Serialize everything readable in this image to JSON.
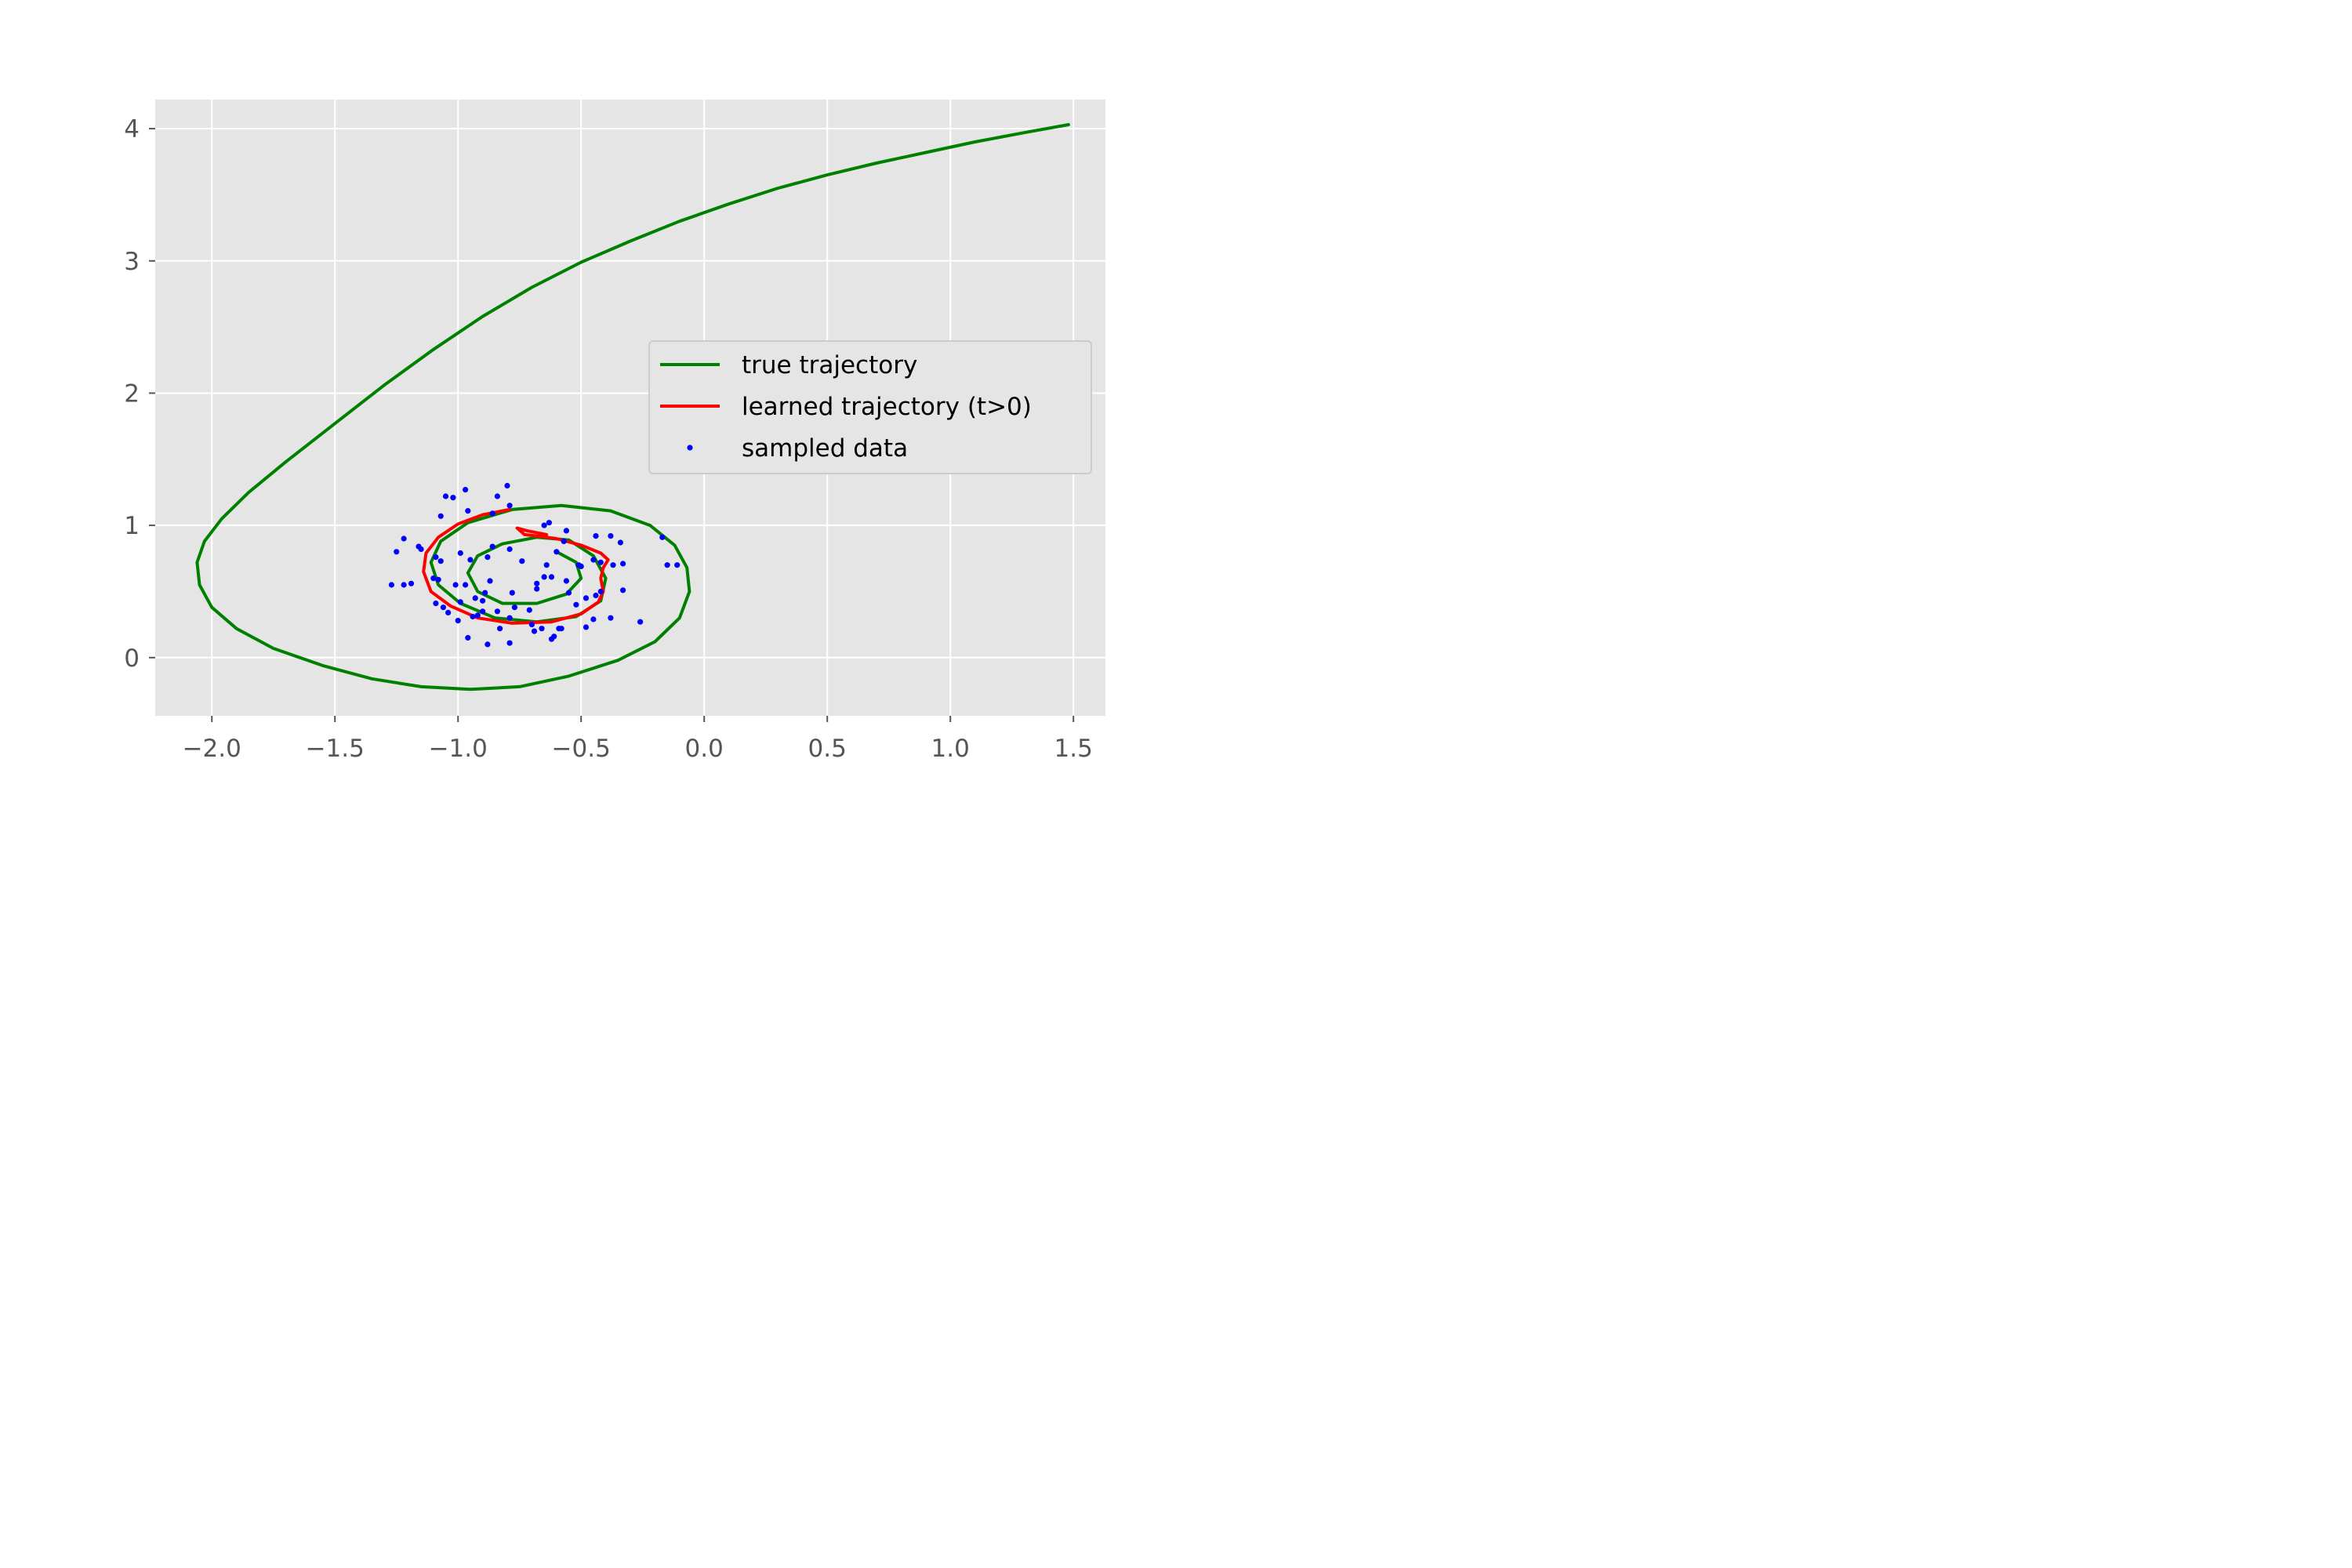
{
  "chart_data": {
    "type": "line",
    "title": "",
    "xlabel": "",
    "ylabel": "",
    "xlim": [
      -2.23,
      1.63
    ],
    "ylim": [
      -0.44,
      4.22
    ],
    "xticks": [
      -2.0,
      -1.5,
      -1.0,
      -0.5,
      0.0,
      0.5,
      1.0,
      1.5
    ],
    "xtick_labels": [
      "−2.0",
      "−1.5",
      "−1.0",
      "−0.5",
      "0.0",
      "0.5",
      "1.0",
      "1.5"
    ],
    "yticks": [
      0,
      1,
      2,
      3,
      4
    ],
    "ytick_labels": [
      "0",
      "1",
      "2",
      "3",
      "4"
    ],
    "grid": true,
    "legend_position": "center-right",
    "colors": {
      "true": "#008000",
      "learned": "#ff0000",
      "sampled": "#0000ff",
      "axes_bg": "#e5e5e5",
      "grid": "#ffffff"
    },
    "series": [
      {
        "name": "true trajectory",
        "kind": "line",
        "x": [
          1.48,
          1.3,
          1.1,
          0.9,
          0.7,
          0.5,
          0.3,
          0.1,
          -0.1,
          -0.3,
          -0.5,
          -0.7,
          -0.9,
          -1.1,
          -1.3,
          -1.5,
          -1.7,
          -1.85,
          -1.96,
          -2.03,
          -2.06,
          -2.05,
          -2.0,
          -1.9,
          -1.75,
          -1.55,
          -1.35,
          -1.15,
          -0.95,
          -0.75,
          -0.55,
          -0.35,
          -0.2,
          -0.1,
          -0.06,
          -0.07,
          -0.12,
          -0.22,
          -0.38,
          -0.58,
          -0.78,
          -0.96,
          -1.07,
          -1.11,
          -1.08,
          -0.99,
          -0.85,
          -0.68,
          -0.52,
          -0.42,
          -0.4,
          -0.45,
          -0.55,
          -0.68,
          -0.82,
          -0.92,
          -0.96,
          -0.92,
          -0.82,
          -0.68,
          -0.56,
          -0.5,
          -0.52,
          -0.6
        ],
        "y": [
          4.03,
          3.97,
          3.9,
          3.82,
          3.74,
          3.65,
          3.55,
          3.43,
          3.3,
          3.15,
          2.99,
          2.8,
          2.58,
          2.33,
          2.06,
          1.77,
          1.48,
          1.25,
          1.05,
          0.88,
          0.72,
          0.55,
          0.38,
          0.22,
          0.07,
          -0.06,
          -0.16,
          -0.22,
          -0.24,
          -0.22,
          -0.14,
          -0.02,
          0.12,
          0.3,
          0.5,
          0.68,
          0.85,
          1.0,
          1.11,
          1.15,
          1.12,
          1.02,
          0.88,
          0.72,
          0.55,
          0.41,
          0.3,
          0.27,
          0.31,
          0.43,
          0.6,
          0.77,
          0.89,
          0.91,
          0.86,
          0.77,
          0.64,
          0.5,
          0.41,
          0.41,
          0.48,
          0.6,
          0.72,
          0.8
        ]
      },
      {
        "name": "learned trajectory (t>0)",
        "kind": "line",
        "x": [
          -0.79,
          -0.9,
          -1.0,
          -1.08,
          -1.13,
          -1.14,
          -1.11,
          -1.03,
          -0.92,
          -0.78,
          -0.62,
          -0.5,
          -0.43,
          -0.41,
          -0.42,
          -0.41,
          -0.39,
          -0.42,
          -0.5,
          -0.6,
          -0.68,
          -0.73,
          -0.76,
          -0.72,
          -0.64
        ],
        "y": [
          1.12,
          1.08,
          1.01,
          0.91,
          0.79,
          0.65,
          0.5,
          0.39,
          0.3,
          0.26,
          0.27,
          0.33,
          0.42,
          0.5,
          0.6,
          0.68,
          0.74,
          0.79,
          0.85,
          0.9,
          0.92,
          0.93,
          0.98,
          0.96,
          0.93
        ]
      },
      {
        "name": "sampled data",
        "kind": "scatter",
        "x": [
          -0.8,
          -0.84,
          -0.97,
          -1.05,
          -1.02,
          -0.79,
          -0.96,
          -1.07,
          -0.86,
          -0.63,
          -0.65,
          -0.56,
          -0.57,
          -0.44,
          -0.38,
          -0.34,
          -0.17,
          -0.15,
          -0.11,
          -1.22,
          -1.16,
          -1.15,
          -1.25,
          -1.09,
          -1.07,
          -0.99,
          -0.95,
          -0.88,
          -0.74,
          -0.64,
          -0.51,
          -0.45,
          -0.37,
          -0.33,
          -1.27,
          -1.22,
          -1.19,
          -1.1,
          -1.08,
          -1.01,
          -0.97,
          -0.93,
          -0.89,
          -0.87,
          -0.78,
          -0.68,
          -0.65,
          -0.62,
          -0.55,
          -0.48,
          -0.42,
          -0.33,
          -0.26,
          -1.09,
          -1.04,
          -0.99,
          -0.94,
          -0.9,
          -0.84,
          -0.79,
          -0.71,
          -0.66,
          -0.59,
          -0.52,
          -0.45,
          -1.06,
          -0.96,
          -0.88,
          -0.79,
          -0.69,
          -0.62,
          -0.58,
          -0.9,
          -0.7,
          -0.48,
          -0.38,
          -0.77,
          -0.68,
          -0.56,
          -0.44,
          -1.0,
          -0.92,
          -0.83,
          -0.61,
          -0.86,
          -0.79,
          -0.5,
          -0.42,
          -0.6
        ],
        "y": [
          1.3,
          1.22,
          1.27,
          1.22,
          1.21,
          1.15,
          1.11,
          1.07,
          1.09,
          1.02,
          1.0,
          0.96,
          0.88,
          0.92,
          0.92,
          0.87,
          0.91,
          0.7,
          0.7,
          0.9,
          0.84,
          0.82,
          0.8,
          0.76,
          0.73,
          0.79,
          0.74,
          0.76,
          0.73,
          0.7,
          0.7,
          0.74,
          0.7,
          0.71,
          0.55,
          0.55,
          0.56,
          0.6,
          0.59,
          0.55,
          0.55,
          0.45,
          0.49,
          0.58,
          0.49,
          0.52,
          0.61,
          0.61,
          0.49,
          0.45,
          0.5,
          0.51,
          0.27,
          0.41,
          0.34,
          0.42,
          0.31,
          0.35,
          0.35,
          0.3,
          0.36,
          0.22,
          0.22,
          0.4,
          0.29,
          0.38,
          0.15,
          0.1,
          0.11,
          0.2,
          0.14,
          0.22,
          0.43,
          0.25,
          0.23,
          0.3,
          0.38,
          0.56,
          0.58,
          0.47,
          0.28,
          0.32,
          0.22,
          0.16,
          0.84,
          0.82,
          0.69,
          0.72,
          0.8
        ]
      }
    ]
  }
}
